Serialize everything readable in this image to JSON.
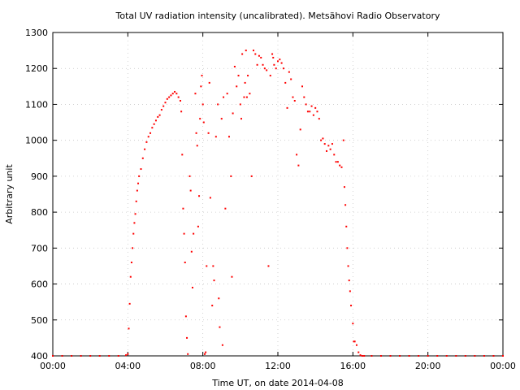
{
  "chart_data": {
    "type": "scatter",
    "title": "Total UV radiation intensity (uncalibrated). Metsähovi Radio Observatory",
    "xlabel": "Time UT, on date 2014-04-08",
    "ylabel": "Arbitrary unit",
    "xlim": [
      0,
      24
    ],
    "ylim": [
      400,
      1300
    ],
    "x_tick_values": [
      0,
      4,
      8,
      12,
      16,
      20,
      24
    ],
    "x_tick_labels": [
      "00:00",
      "04:00",
      "08:00",
      "12:00",
      "16:00",
      "20:00",
      "00:00"
    ],
    "y_tick_values": [
      400,
      500,
      600,
      700,
      800,
      900,
      1000,
      1100,
      1200,
      1300
    ],
    "y_tick_labels": [
      "400",
      "500",
      "600",
      "700",
      "800",
      "900",
      "1000",
      "1100",
      "1200",
      "1300"
    ],
    "grid": true,
    "marker_color": "#ff0000",
    "series": [
      {
        "x": [
          0.0,
          0.5,
          1.0,
          1.5,
          2.0,
          2.5,
          3.0,
          3.5,
          3.9,
          4.0,
          4.05,
          4.1,
          4.15,
          4.2,
          4.25,
          4.3,
          4.35,
          4.4,
          4.45,
          4.5,
          4.55,
          4.6,
          4.7,
          4.8,
          4.9,
          5.0,
          5.1,
          5.2,
          5.3,
          5.4,
          5.5,
          5.6,
          5.7,
          5.8,
          5.9,
          6.0,
          6.1,
          6.2,
          6.3,
          6.4,
          6.5,
          6.6,
          6.7,
          6.8,
          6.85,
          6.9,
          6.95,
          7.0,
          7.05,
          7.1,
          7.15,
          7.2,
          7.3,
          7.35,
          7.4,
          7.45,
          7.5,
          7.6,
          7.65,
          7.7,
          7.75,
          7.8,
          7.85,
          7.9,
          7.95,
          8.0,
          8.05,
          8.1,
          8.15,
          8.2,
          8.3,
          8.35,
          8.4,
          8.5,
          8.55,
          8.6,
          8.7,
          8.8,
          8.85,
          8.9,
          9.0,
          9.05,
          9.1,
          9.2,
          9.3,
          9.4,
          9.5,
          9.55,
          9.6,
          9.7,
          9.8,
          9.9,
          10.0,
          10.05,
          10.1,
          10.2,
          10.25,
          10.3,
          10.35,
          10.4,
          10.5,
          10.6,
          10.7,
          10.8,
          10.9,
          11.0,
          11.1,
          11.2,
          11.3,
          11.4,
          11.5,
          11.6,
          11.7,
          11.75,
          11.8,
          11.9,
          12.0,
          12.1,
          12.2,
          12.3,
          12.4,
          12.5,
          12.6,
          12.7,
          12.8,
          12.9,
          13.0,
          13.1,
          13.2,
          13.3,
          13.4,
          13.5,
          13.6,
          13.7,
          13.8,
          13.9,
          14.0,
          14.1,
          14.2,
          14.3,
          14.4,
          14.5,
          14.6,
          14.7,
          14.8,
          14.9,
          15.0,
          15.1,
          15.2,
          15.3,
          15.4,
          15.5,
          15.55,
          15.6,
          15.65,
          15.7,
          15.75,
          15.8,
          15.85,
          15.9,
          16.0,
          16.05,
          16.1,
          16.2,
          16.3,
          16.4,
          16.5,
          16.6,
          17.0,
          17.5,
          18.0,
          18.5,
          19.0,
          19.5,
          20.0,
          20.5,
          21.0,
          21.5,
          22.0,
          22.5,
          23.0,
          23.5,
          24.0
        ],
        "y": [
          400,
          400,
          400,
          400,
          400,
          400,
          400,
          400,
          402,
          405,
          476,
          545,
          620,
          660,
          700,
          740,
          770,
          795,
          830,
          860,
          880,
          900,
          920,
          950,
          975,
          995,
          1010,
          1020,
          1035,
          1045,
          1055,
          1065,
          1070,
          1085,
          1095,
          1105,
          1115,
          1120,
          1125,
          1130,
          1135,
          1130,
          1120,
          1110,
          1080,
          960,
          810,
          740,
          660,
          510,
          450,
          405,
          900,
          860,
          690,
          590,
          740,
          1130,
          1020,
          985,
          760,
          845,
          1060,
          1150,
          1180,
          1100,
          1050,
          405,
          410,
          650,
          1020,
          1160,
          840,
          540,
          650,
          610,
          1010,
          1100,
          560,
          480,
          1060,
          430,
          1120,
          810,
          1130,
          1010,
          900,
          620,
          1075,
          1205,
          1150,
          1180,
          1100,
          1060,
          1240,
          1120,
          1160,
          1250,
          1120,
          1180,
          1130,
          900,
          1250,
          1240,
          1210,
          1235,
          1230,
          1210,
          1200,
          1195,
          650,
          1180,
          1240,
          1230,
          1210,
          1200,
          1220,
          1225,
          1215,
          1200,
          1160,
          1090,
          1190,
          1170,
          1120,
          1110,
          960,
          930,
          1030,
          1150,
          1120,
          1100,
          1080,
          1080,
          1095,
          1070,
          1090,
          1080,
          1060,
          1000,
          1005,
          990,
          970,
          985,
          975,
          990,
          960,
          940,
          940,
          930,
          925,
          1000,
          870,
          820,
          760,
          700,
          650,
          610,
          580,
          540,
          490,
          440,
          440,
          430,
          410,
          402,
          400,
          400,
          400,
          400,
          400,
          400,
          400,
          400,
          400,
          400,
          400,
          400,
          400,
          400,
          400,
          400,
          400
        ]
      }
    ]
  }
}
